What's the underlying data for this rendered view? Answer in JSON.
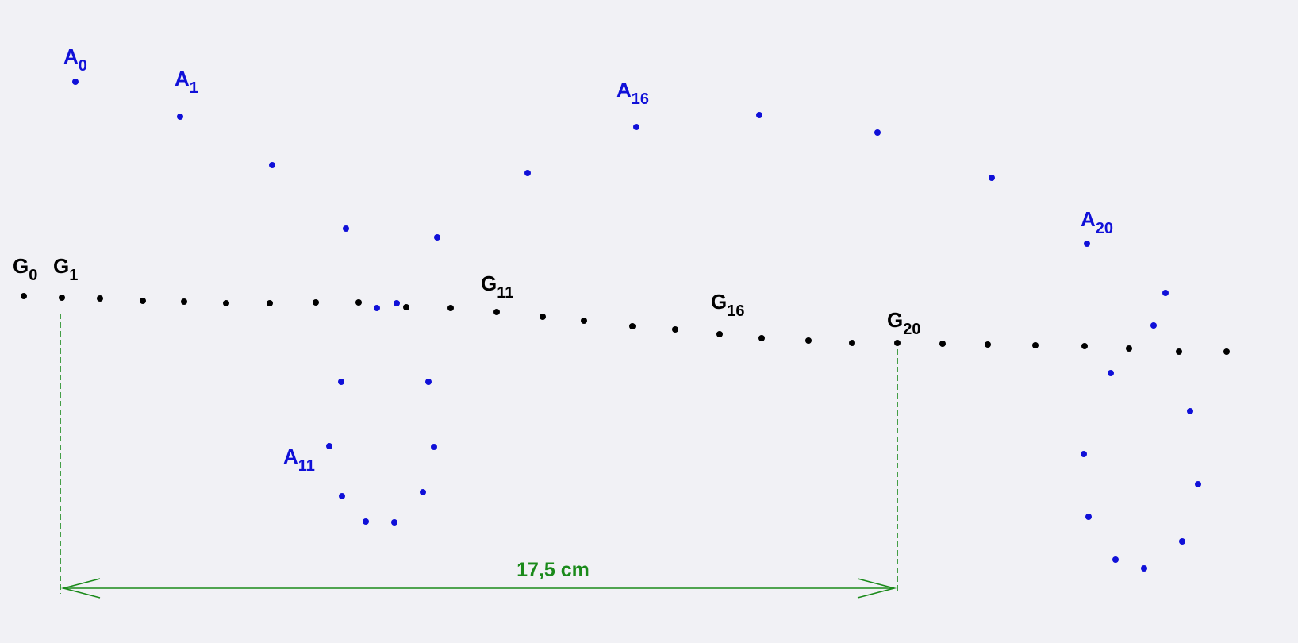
{
  "colors": {
    "background": "#f1f1f5",
    "trajectory_a": "#1010d8",
    "trajectory_g": "#000000",
    "dimension": "#1a8a1a"
  },
  "labels_a": [
    {
      "base": "A",
      "sub": "0"
    },
    {
      "base": "A",
      "sub": "1"
    },
    {
      "base": "A",
      "sub": "16"
    },
    {
      "base": "A",
      "sub": "20"
    },
    {
      "base": "A",
      "sub": "11"
    }
  ],
  "labels_g": [
    {
      "base": "G",
      "sub": "0"
    },
    {
      "base": "G",
      "sub": "1"
    },
    {
      "base": "G",
      "sub": "11"
    },
    {
      "base": "G",
      "sub": "16"
    },
    {
      "base": "G",
      "sub": "20"
    }
  ],
  "dimension": {
    "label": "17,5 cm"
  }
}
